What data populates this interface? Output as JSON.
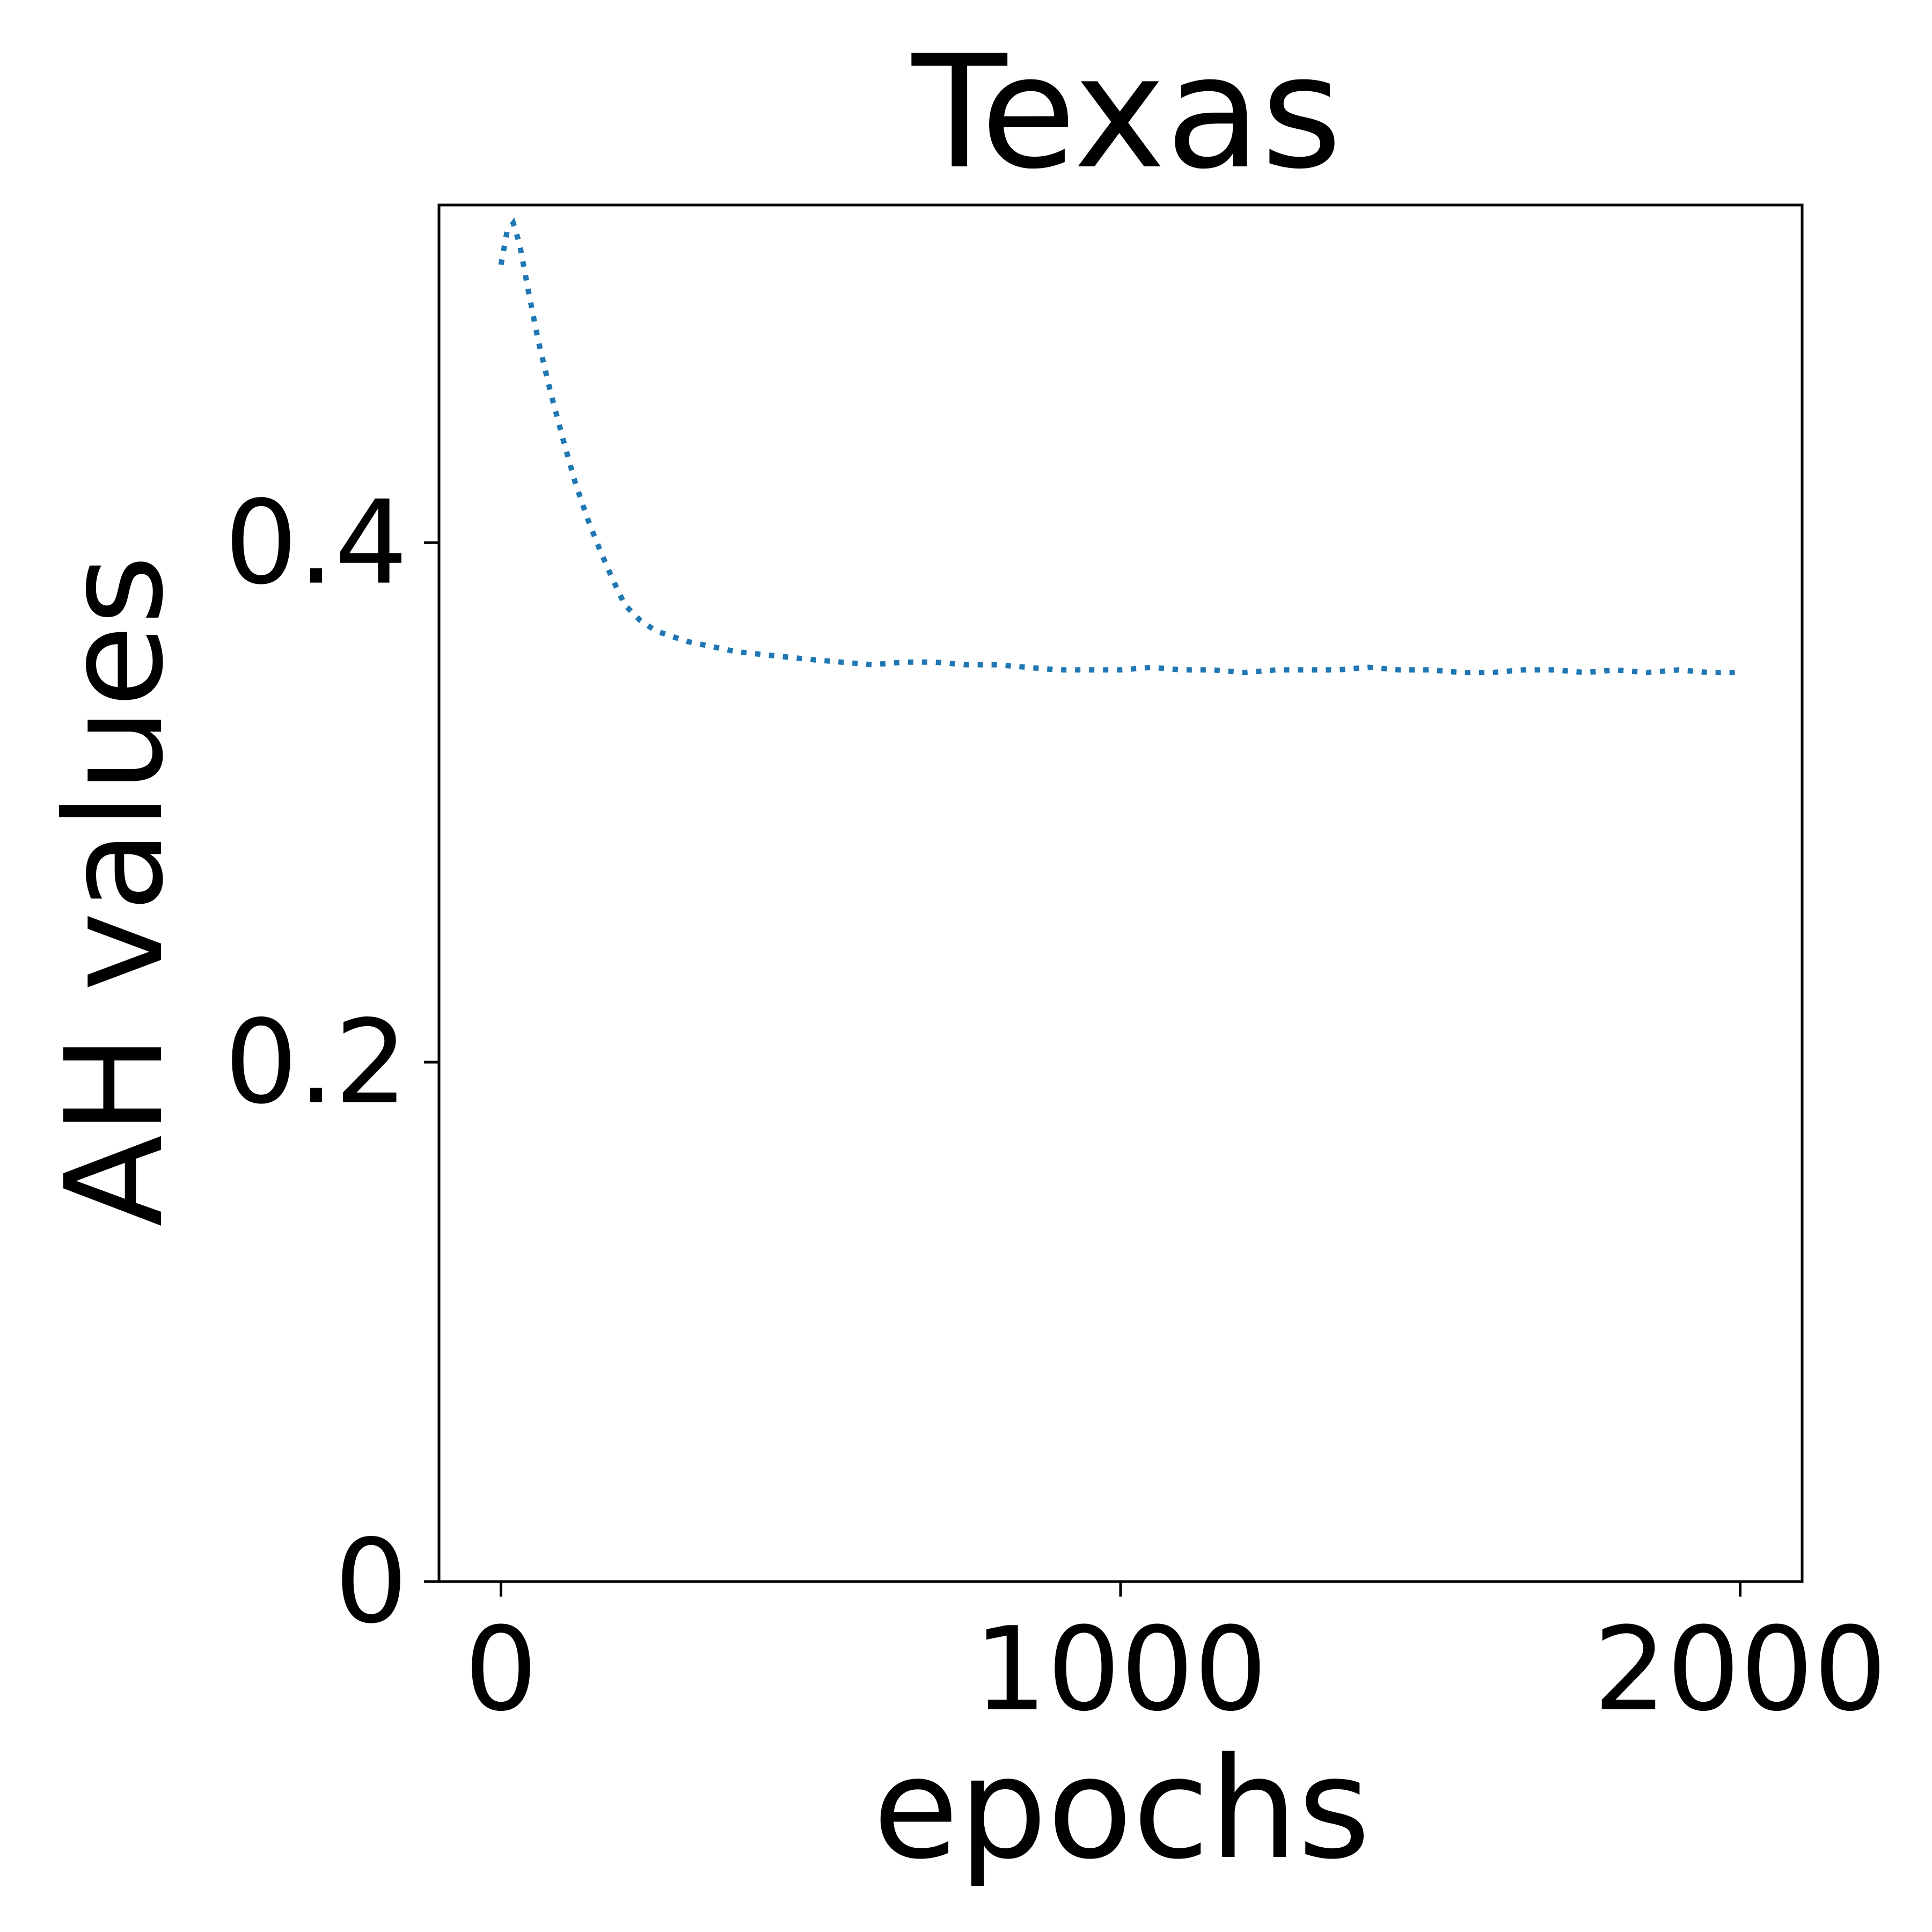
{
  "chart_data": {
    "type": "line",
    "title": "Texas",
    "xlabel": "epochs",
    "ylabel": "AH values",
    "xlim": [
      -100,
      2100
    ],
    "ylim": [
      0,
      0.53
    ],
    "xticks": [
      0,
      1000,
      2000
    ],
    "xtick_labels": [
      "0",
      "1000",
      "2000"
    ],
    "yticks": [
      0,
      0.2,
      0.4
    ],
    "ytick_labels": [
      "0",
      "0.2",
      "0.4"
    ],
    "grid": false,
    "line_style": "dotted",
    "colors": {
      "series": "#1f77b4",
      "axes": "#000000",
      "background": "#ffffff"
    },
    "series": [
      {
        "x": [
          0,
          10,
          20,
          30,
          45,
          60,
          80,
          100,
          120,
          140,
          160,
          180,
          200,
          225,
          250,
          275,
          300,
          340,
          380,
          420,
          460,
          500,
          550,
          600,
          650,
          700,
          750,
          800,
          850,
          900,
          950,
          1000,
          1050,
          1100,
          1150,
          1200,
          1250,
          1300,
          1350,
          1400,
          1450,
          1500,
          1550,
          1600,
          1650,
          1700,
          1750,
          1800,
          1850,
          1900,
          1950,
          2000
        ],
        "y": [
          0.507,
          0.52,
          0.523,
          0.515,
          0.496,
          0.478,
          0.458,
          0.44,
          0.423,
          0.409,
          0.397,
          0.386,
          0.376,
          0.37,
          0.366,
          0.364,
          0.362,
          0.36,
          0.358,
          0.357,
          0.356,
          0.355,
          0.354,
          0.353,
          0.354,
          0.354,
          0.353,
          0.353,
          0.352,
          0.351,
          0.351,
          0.351,
          0.352,
          0.351,
          0.351,
          0.35,
          0.351,
          0.351,
          0.351,
          0.352,
          0.351,
          0.351,
          0.35,
          0.35,
          0.351,
          0.351,
          0.35,
          0.351,
          0.35,
          0.351,
          0.35,
          0.35
        ]
      }
    ]
  }
}
